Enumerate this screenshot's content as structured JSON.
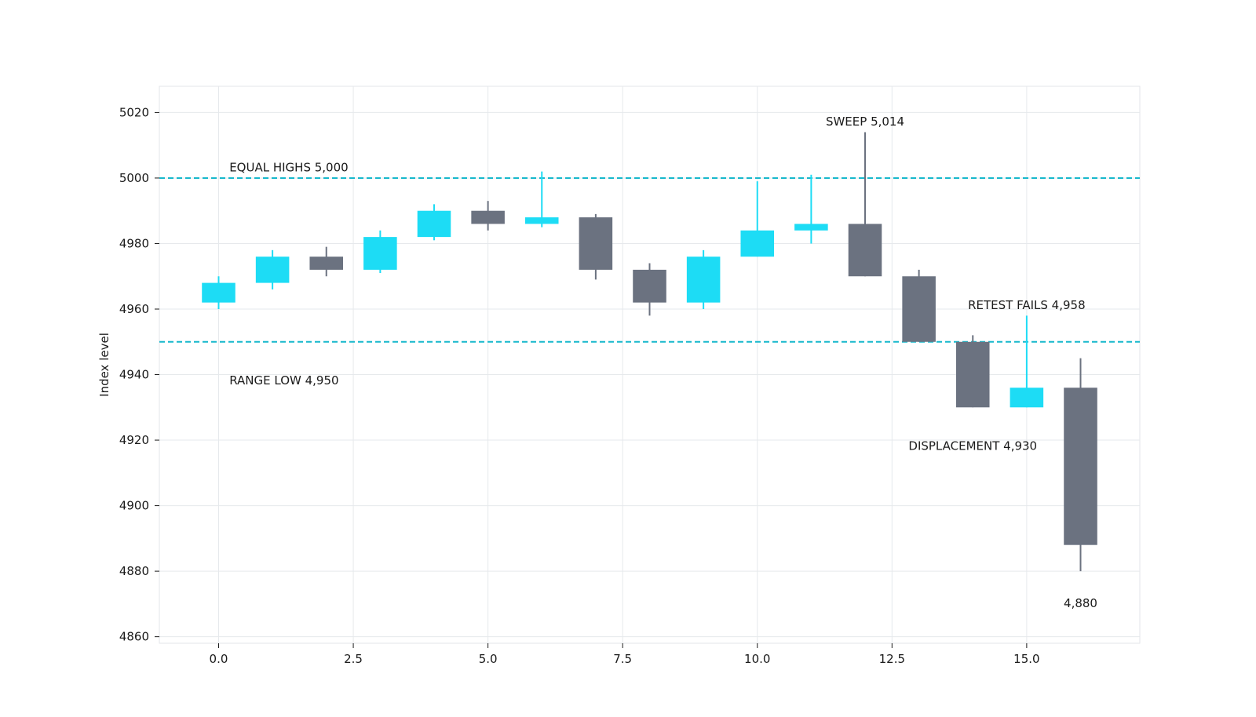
{
  "chart_data": {
    "type": "candlestick",
    "title": "",
    "xlabel": "",
    "ylabel": "Index level",
    "xlim": [
      -1.1,
      17.1
    ],
    "ylim": [
      4858,
      5028
    ],
    "x_ticks": [
      0.0,
      2.5,
      5.0,
      7.5,
      10.0,
      12.5,
      15.0
    ],
    "x_tick_labels": [
      "0.0",
      "2.5",
      "5.0",
      "7.5",
      "10.0",
      "12.5",
      "15.0"
    ],
    "y_ticks": [
      4860,
      4880,
      4900,
      4920,
      4940,
      4960,
      4980,
      5000,
      5020
    ],
    "y_tick_labels": [
      "4860",
      "4880",
      "4900",
      "4920",
      "4940",
      "4960",
      "4980",
      "5000",
      "5020"
    ],
    "grid": true,
    "colors": {
      "up": "#1ddcf5",
      "down": "#6b7280",
      "reference_line": "#17b8cc",
      "grid": "#e6e9ec",
      "frame": "#e3e6ea"
    },
    "candles": [
      {
        "x": 0,
        "open": 4962,
        "high": 4970,
        "low": 4960,
        "close": 4968
      },
      {
        "x": 1,
        "open": 4968,
        "high": 4978,
        "low": 4966,
        "close": 4976
      },
      {
        "x": 2,
        "open": 4976,
        "high": 4979,
        "low": 4970,
        "close": 4972
      },
      {
        "x": 3,
        "open": 4972,
        "high": 4984,
        "low": 4971,
        "close": 4982
      },
      {
        "x": 4,
        "open": 4982,
        "high": 4992,
        "low": 4981,
        "close": 4990
      },
      {
        "x": 5,
        "open": 4990,
        "high": 4993,
        "low": 4984,
        "close": 4986
      },
      {
        "x": 6,
        "open": 4986,
        "high": 5002,
        "low": 4985,
        "close": 4988
      },
      {
        "x": 7,
        "open": 4988,
        "high": 4989,
        "low": 4969,
        "close": 4972
      },
      {
        "x": 8,
        "open": 4972,
        "high": 4974,
        "low": 4958,
        "close": 4962
      },
      {
        "x": 9,
        "open": 4962,
        "high": 4978,
        "low": 4960,
        "close": 4976
      },
      {
        "x": 10,
        "open": 4976,
        "high": 4999,
        "low": 4976,
        "close": 4984
      },
      {
        "x": 11,
        "open": 4984,
        "high": 5001,
        "low": 4980,
        "close": 4986
      },
      {
        "x": 12,
        "open": 4986,
        "high": 5014,
        "low": 4970,
        "close": 4970
      },
      {
        "x": 13,
        "open": 4970,
        "high": 4972,
        "low": 4950,
        "close": 4950
      },
      {
        "x": 14,
        "open": 4950,
        "high": 4952,
        "low": 4930,
        "close": 4930
      },
      {
        "x": 15,
        "open": 4930,
        "high": 4958,
        "low": 4930,
        "close": 4936
      },
      {
        "x": 16,
        "open": 4936,
        "high": 4945,
        "low": 4880,
        "close": 4888
      }
    ],
    "reference_lines": [
      {
        "y": 5000
      },
      {
        "y": 4950
      }
    ],
    "annotations": [
      {
        "text": "EQUAL HIGHS 5,000",
        "x": 0.2,
        "y": 5002,
        "anchor": "start"
      },
      {
        "text": "RANGE LOW 4,950",
        "x": 0.2,
        "y": 4937,
        "anchor": "start"
      },
      {
        "text": "SWEEP 5,014",
        "x": 12.0,
        "y": 5016,
        "anchor": "middle"
      },
      {
        "text": "RETEST FAILS 4,958",
        "x": 15.0,
        "y": 4960,
        "anchor": "middle"
      },
      {
        "text": "DISPLACEMENT 4,930",
        "x": 14.0,
        "y": 4917,
        "anchor": "middle"
      },
      {
        "text": "4,880",
        "x": 16.0,
        "y": 4869,
        "anchor": "middle"
      }
    ]
  }
}
